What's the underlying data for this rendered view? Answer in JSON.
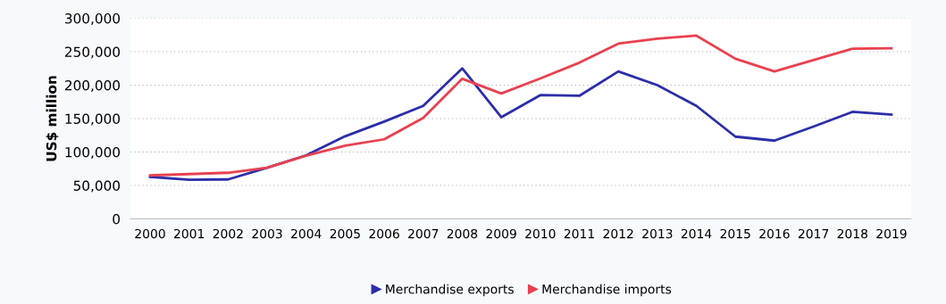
{
  "chart_data": {
    "type": "line",
    "ylabel": "US$ million",
    "categories": [
      "2000",
      "2001",
      "2002",
      "2003",
      "2004",
      "2005",
      "2006",
      "2007",
      "2008",
      "2009",
      "2010",
      "2011",
      "2012",
      "2013",
      "2014",
      "2015",
      "2016",
      "2017",
      "2018",
      "2019"
    ],
    "series": [
      {
        "name": "Merchandise exports",
        "color": "#2b2ea8",
        "values": [
          62700,
          58600,
          59000,
          76500,
          95000,
          123500,
          145500,
          169000,
          225000,
          152000,
          185000,
          184000,
          220500,
          200000,
          169000,
          123000,
          117000,
          138000,
          160000,
          156000
        ]
      },
      {
        "name": "Merchandise imports",
        "color": "#e8414f",
        "values": [
          65000,
          67000,
          69000,
          76500,
          94500,
          109500,
          119000,
          151000,
          209500,
          187500,
          210000,
          233500,
          262000,
          269500,
          274000,
          239500,
          220500,
          237500,
          254500,
          255000
        ]
      }
    ],
    "ylim": [
      0,
      300000
    ],
    "yticks": [
      {
        "value": 0,
        "label": "0"
      },
      {
        "value": 50000,
        "label": "50,000"
      },
      {
        "value": 100000,
        "label": "100,000"
      },
      {
        "value": 150000,
        "label": "150,000"
      },
      {
        "value": 200000,
        "label": "200,000"
      },
      {
        "value": 250000,
        "label": "250,000"
      },
      {
        "value": 300000,
        "label": "300,000"
      }
    ],
    "grid": "y",
    "legend": "bottom",
    "line_style": "solid"
  }
}
